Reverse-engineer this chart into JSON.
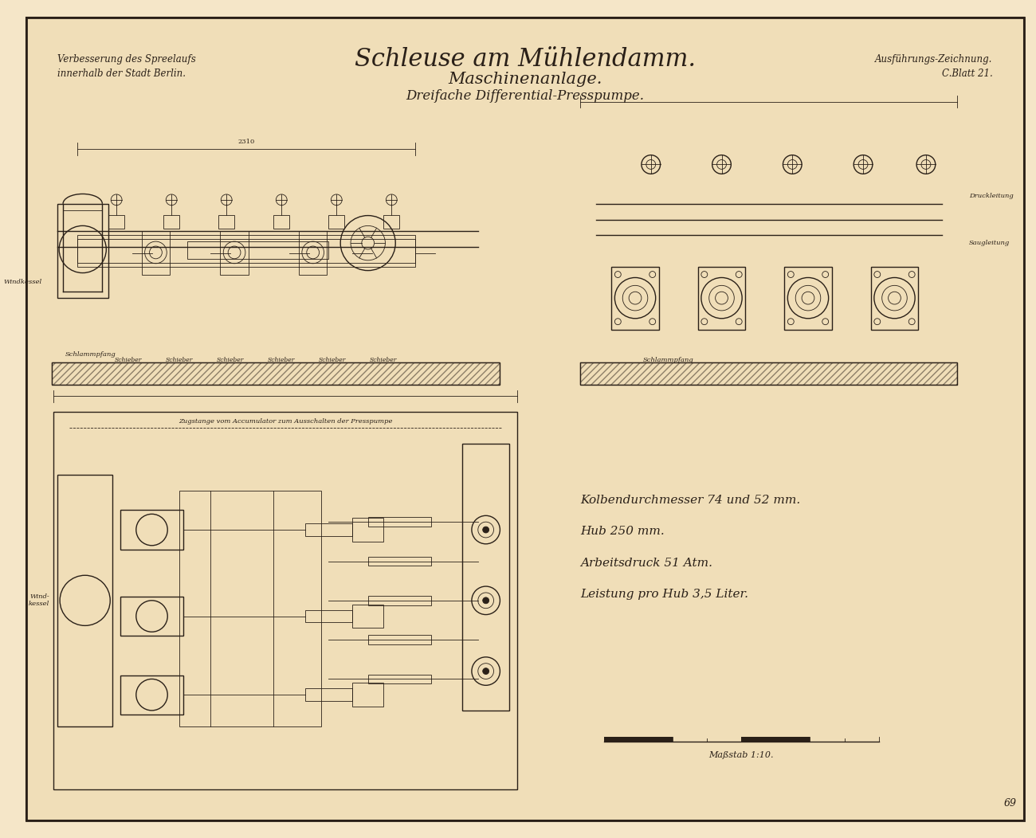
{
  "bg_color": "#f5e6c8",
  "paper_color": "#f0deb8",
  "ink_color": "#2a2018",
  "title_main": "Schleuse am Mühlendamm.",
  "title_sub1": "Maschinenanlage.",
  "title_sub2": "Dreifache Differential-Presspumpe.",
  "top_left_line1": "Verbesserung des Spreelaufs",
  "top_left_line2": "innerhalb der Stadt Berlin.",
  "top_right_line1": "Ausführungs-Zeichnung.",
  "top_right_line2": "C.Blatt 21.",
  "spec_line1": "Kolbendurchmesser 74 und 52 mm.",
  "spec_line2": "Hub 250 mm.",
  "spec_line3": "Arbeitsdruck 51 Atm.",
  "spec_line4": "Leistung pro Hub 3,5 Liter.",
  "scale_text": "Maßstab 1:10.",
  "border_color": "#1a1008",
  "lw_thin": 0.6,
  "lw_med": 1.0,
  "lw_thick": 1.5
}
